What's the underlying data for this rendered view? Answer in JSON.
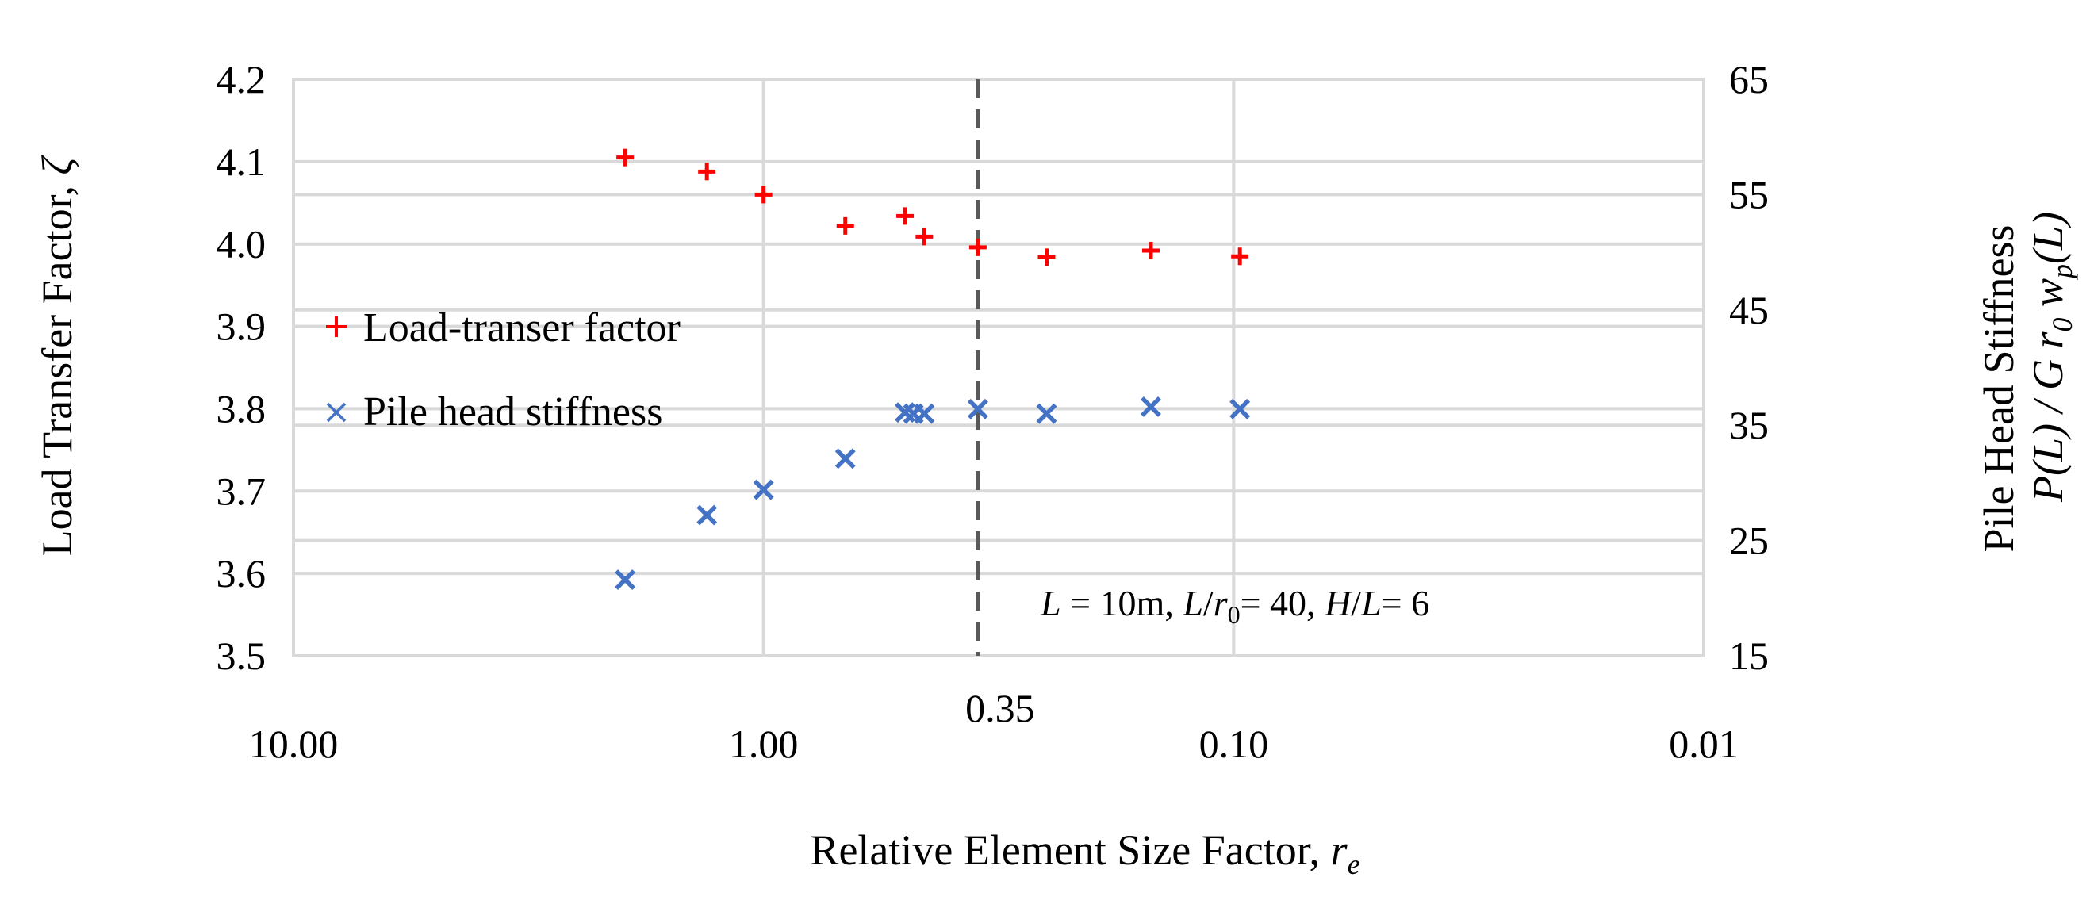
{
  "chart_data": {
    "type": "scatter",
    "x_scale": "log",
    "x_reversed": true,
    "xlim": [
      10,
      0.01
    ],
    "x_ticks": [
      10,
      1,
      0.1,
      0.01
    ],
    "x_tick_labels": [
      "10.00",
      "1.00",
      "0.10",
      "0.01"
    ],
    "xlabel": "Relative Element Size Factor, ",
    "xlabel_symbol": "r",
    "xlabel_subscript": "e",
    "y_left": {
      "label": "Load Transfer Factor, ",
      "label_symbol": "ζ",
      "ylim": [
        3.5,
        4.2
      ],
      "ticks": [
        3.5,
        3.6,
        3.7,
        3.8,
        3.9,
        4.0,
        4.1,
        4.2
      ],
      "tick_labels": [
        "3.5",
        "3.6",
        "3.7",
        "3.8",
        "3.9",
        "4.0",
        "4.1",
        "4.2"
      ]
    },
    "y_right": {
      "label_line1": "Pile Head Stiffness",
      "label_line2": "P(L) / G r",
      "label_line2_sub": "0",
      "label_line2_w": " w",
      "label_line2_w_sub": "p",
      "label_line2_end": "(L)",
      "ylim": [
        15,
        65
      ],
      "ticks": [
        15,
        25,
        35,
        45,
        55,
        65
      ],
      "tick_labels": [
        "15",
        "25",
        "35",
        "45",
        "55",
        "65"
      ]
    },
    "series": [
      {
        "name": "Load-transer factor",
        "marker": "+",
        "color": "#ff0000",
        "axis": "left",
        "x": [
          1.97,
          1.32,
          1.0,
          0.67,
          0.5,
          0.455,
          0.35,
          0.25,
          0.15,
          0.097
        ],
        "y": [
          4.105,
          4.088,
          4.06,
          4.022,
          4.034,
          4.009,
          3.996,
          3.984,
          3.992,
          3.985
        ]
      },
      {
        "name": "Pile head stiffness",
        "marker": "x",
        "color": "#4472c4",
        "axis": "right",
        "x": [
          1.97,
          1.32,
          1.0,
          0.67,
          0.5,
          0.48,
          0.455,
          0.35,
          0.25,
          0.15,
          0.097
        ],
        "y": [
          21.6,
          27.2,
          29.4,
          32.1,
          36.1,
          36.0,
          36.0,
          36.4,
          36.0,
          36.6,
          36.4
        ]
      }
    ],
    "reference_line": {
      "x": 0.35,
      "label": "0.35",
      "style": "dashed",
      "color": "#595959"
    },
    "annotation": {
      "L": "L",
      "L_val": " = 10m, ",
      "Lr0": "L",
      "Lr0_mid": "/",
      "r0": "r",
      "r0_sub": "0",
      "Lr0_val": "= 40, ",
      "HL": "H",
      "HL_mid": "/",
      "HL_L": "L",
      "HL_val": "= 6"
    },
    "legend_position": "left-middle",
    "grid": true
  }
}
